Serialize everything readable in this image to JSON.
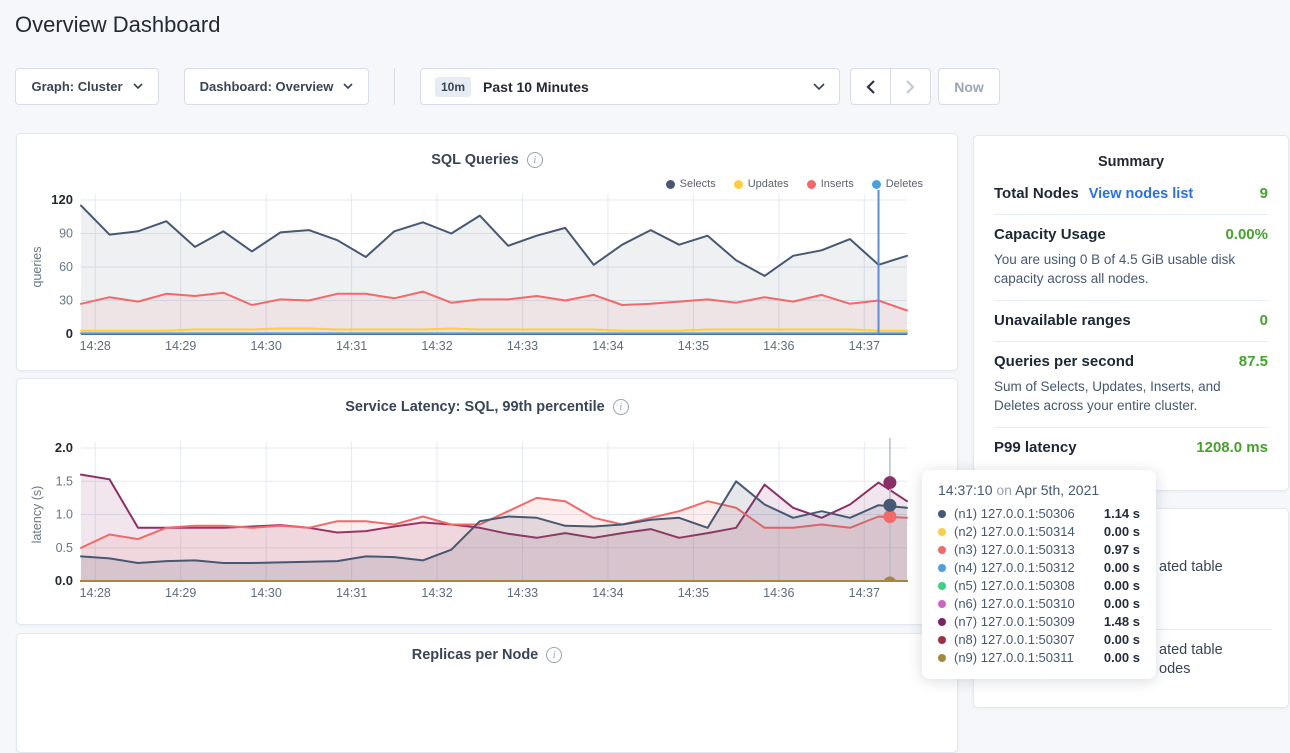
{
  "page": {
    "title": "Overview Dashboard"
  },
  "toolbar": {
    "graph_dropdown": "Graph: Cluster",
    "dashboard_dropdown": "Dashboard: Overview",
    "time_window_badge": "10m",
    "time_window_label": "Past 10 Minutes",
    "now_button": "Now"
  },
  "summary": {
    "title": "Summary",
    "rows": [
      {
        "label": "Total Nodes",
        "link": "View nodes list",
        "value": "9"
      },
      {
        "label": "Capacity Usage",
        "value": "0.00%",
        "description": "You are using 0 B of 4.5 GiB usable disk capacity across all nodes."
      },
      {
        "label": "Unavailable ranges",
        "value": "0"
      },
      {
        "label": "Queries per second",
        "value": "87.5",
        "description": "Sum of Selects, Updates, Inserts, and Deletes across your entire cluster."
      },
      {
        "label": "P99 latency",
        "value": "1208.0 ms"
      }
    ],
    "accent_green": "#46a12e",
    "link_blue": "#2b6fe8"
  },
  "tooltip": {
    "time": "14:37:10",
    "on": "on",
    "date": "Apr 5th, 2021",
    "rows": [
      {
        "color": "#475872",
        "label": "(n1) 127.0.0.1:50306",
        "value": "1.14 s"
      },
      {
        "color": "#ffcd44",
        "label": "(n2) 127.0.0.1:50314",
        "value": "0.00 s"
      },
      {
        "color": "#f16969",
        "label": "(n3) 127.0.0.1:50313",
        "value": "0.97 s"
      },
      {
        "color": "#4da0e0",
        "label": "(n4) 127.0.0.1:50312",
        "value": "0.00 s"
      },
      {
        "color": "#3fd17f",
        "label": "(n5) 127.0.0.1:50308",
        "value": "0.00 s"
      },
      {
        "color": "#cc66c0",
        "label": "(n6) 127.0.0.1:50310",
        "value": "0.00 s"
      },
      {
        "color": "#7d2264",
        "label": "(n7) 127.0.0.1:50309",
        "value": "1.48 s"
      },
      {
        "color": "#a02d47",
        "label": "(n8) 127.0.0.1:50307",
        "value": "0.00 s"
      },
      {
        "color": "#a5873e",
        "label": "(n9) 127.0.0.1:50311",
        "value": "0.00 s"
      }
    ]
  },
  "events_panel": {
    "visible_fragments": [
      "ated table",
      "ated table",
      "odes"
    ]
  },
  "chart_data": [
    {
      "type": "line",
      "title": "SQL Queries",
      "ylabel": "queries",
      "ylim": [
        0,
        120
      ],
      "ytick_values": [
        0,
        30,
        60,
        90,
        120
      ],
      "ytick_labels": [
        "0",
        "30",
        "60",
        "90",
        "120"
      ],
      "x_start": "14:27:50",
      "x_end": "14:37:30",
      "sample_interval_s": 20,
      "x_tick_labels": [
        "14:28",
        "14:29",
        "14:30",
        "14:31",
        "14:32",
        "14:33",
        "14:34",
        "14:35",
        "14:36",
        "14:37"
      ],
      "legend": [
        {
          "name": "Selects",
          "color": "#475872"
        },
        {
          "name": "Updates",
          "color": "#ffcd44"
        },
        {
          "name": "Inserts",
          "color": "#f16969"
        },
        {
          "name": "Deletes",
          "color": "#4da0e0"
        }
      ],
      "hover_time": "14:37:10",
      "series": [
        {
          "name": "Selects",
          "color": "#475872",
          "fill": "rgba(71,88,114,0.09)",
          "values": [
            115,
            89,
            92,
            101,
            78,
            92,
            74,
            91,
            93,
            84,
            69,
            92,
            100,
            90,
            106,
            79,
            88,
            95,
            62,
            80,
            93,
            80,
            88,
            66,
            52,
            70,
            75,
            85,
            62,
            70
          ]
        },
        {
          "name": "Inserts",
          "color": "#f16969",
          "fill": "rgba(241,105,105,0.09)",
          "values": [
            27,
            33,
            29,
            36,
            34,
            37,
            26,
            31,
            30,
            36,
            36,
            32,
            38,
            28,
            31,
            31,
            34,
            30,
            35,
            26,
            27,
            29,
            31,
            28,
            33,
            29,
            35,
            27,
            30,
            21
          ]
        },
        {
          "name": "Updates",
          "color": "#ffcd44",
          "fill": "rgba(255,205,68,0.15)",
          "values": [
            3,
            3,
            3,
            3,
            4,
            4,
            4,
            5,
            5,
            4,
            4,
            4,
            4,
            5,
            4,
            4,
            4,
            4,
            4,
            3,
            3,
            3,
            4,
            4,
            4,
            4,
            4,
            4,
            3,
            3
          ]
        },
        {
          "name": "Deletes",
          "color": "#4da0e0",
          "flat": 0.5
        }
      ]
    },
    {
      "type": "line",
      "title": "Service Latency: SQL, 99th percentile",
      "ylabel": "latency (s)",
      "ylim": [
        0,
        2.0
      ],
      "ytick_values": [
        0,
        0.5,
        1.0,
        1.5,
        2.0
      ],
      "ytick_labels": [
        "0.0",
        "0.5",
        "1.0",
        "1.5",
        "2.0"
      ],
      "x_start": "14:27:50",
      "x_end": "14:37:30",
      "sample_interval_s": 20,
      "x_tick_labels": [
        "14:28",
        "14:29",
        "14:30",
        "14:31",
        "14:32",
        "14:33",
        "14:34",
        "14:35",
        "14:36",
        "14:37"
      ],
      "hover_time": "14:37:10",
      "hover_dots": [
        {
          "node": "n9",
          "color": "#a5873e",
          "value": 0.0
        },
        {
          "node": "n3",
          "color": "#f16969",
          "value": 0.97
        },
        {
          "node": "n1",
          "color": "#475872",
          "value": 1.14
        },
        {
          "node": "n7",
          "color": "#8b2f67",
          "value": 1.48
        }
      ],
      "series": [
        {
          "name": "(n7) 127.0.0.1:50309",
          "color": "#8b2f67",
          "fill": "rgba(139,47,103,0.12)",
          "values": [
            1.6,
            1.53,
            0.8,
            0.8,
            0.8,
            0.8,
            0.82,
            0.84,
            0.8,
            0.73,
            0.75,
            0.82,
            0.88,
            0.85,
            0.8,
            0.71,
            0.65,
            0.72,
            0.65,
            0.72,
            0.78,
            0.65,
            0.72,
            0.8,
            1.45,
            1.1,
            0.95,
            1.15,
            1.48,
            1.2
          ]
        },
        {
          "name": "(n3) 127.0.0.1:50313",
          "color": "#f16969",
          "fill": "rgba(241,105,105,0.12)",
          "values": [
            0.5,
            0.7,
            0.63,
            0.8,
            0.83,
            0.83,
            0.8,
            0.83,
            0.8,
            0.9,
            0.9,
            0.85,
            0.97,
            0.85,
            0.85,
            1.05,
            1.25,
            1.2,
            0.95,
            0.85,
            0.95,
            1.05,
            1.2,
            1.1,
            0.8,
            0.8,
            0.85,
            0.8,
            0.97,
            0.95
          ]
        },
        {
          "name": "(n1) 127.0.0.1:50306",
          "color": "#475872",
          "fill": "rgba(71,88,114,0.14)",
          "values": [
            0.37,
            0.34,
            0.27,
            0.3,
            0.31,
            0.27,
            0.27,
            0.28,
            0.29,
            0.3,
            0.37,
            0.36,
            0.31,
            0.47,
            0.9,
            0.97,
            0.95,
            0.83,
            0.82,
            0.85,
            0.92,
            0.95,
            0.8,
            1.5,
            1.15,
            0.95,
            1.05,
            0.95,
            1.14,
            1.1
          ]
        },
        {
          "name": "(n2) 127.0.0.1:50314",
          "color": "#ffcd44",
          "flat": 0
        },
        {
          "name": "(n4) 127.0.0.1:50312",
          "color": "#4da0e0",
          "flat": 0
        },
        {
          "name": "(n5) 127.0.0.1:50308",
          "color": "#3fd17f",
          "flat": 0
        },
        {
          "name": "(n6) 127.0.0.1:50310",
          "color": "#cc66c0",
          "flat": 0
        },
        {
          "name": "(n8) 127.0.0.1:50307",
          "color": "#a02d47",
          "flat": 0
        },
        {
          "name": "(n9) 127.0.0.1:50311",
          "color": "#a5873e",
          "flat": 0
        }
      ]
    },
    {
      "type": "line",
      "title": "Replicas per Node",
      "partially_visible": true
    }
  ]
}
